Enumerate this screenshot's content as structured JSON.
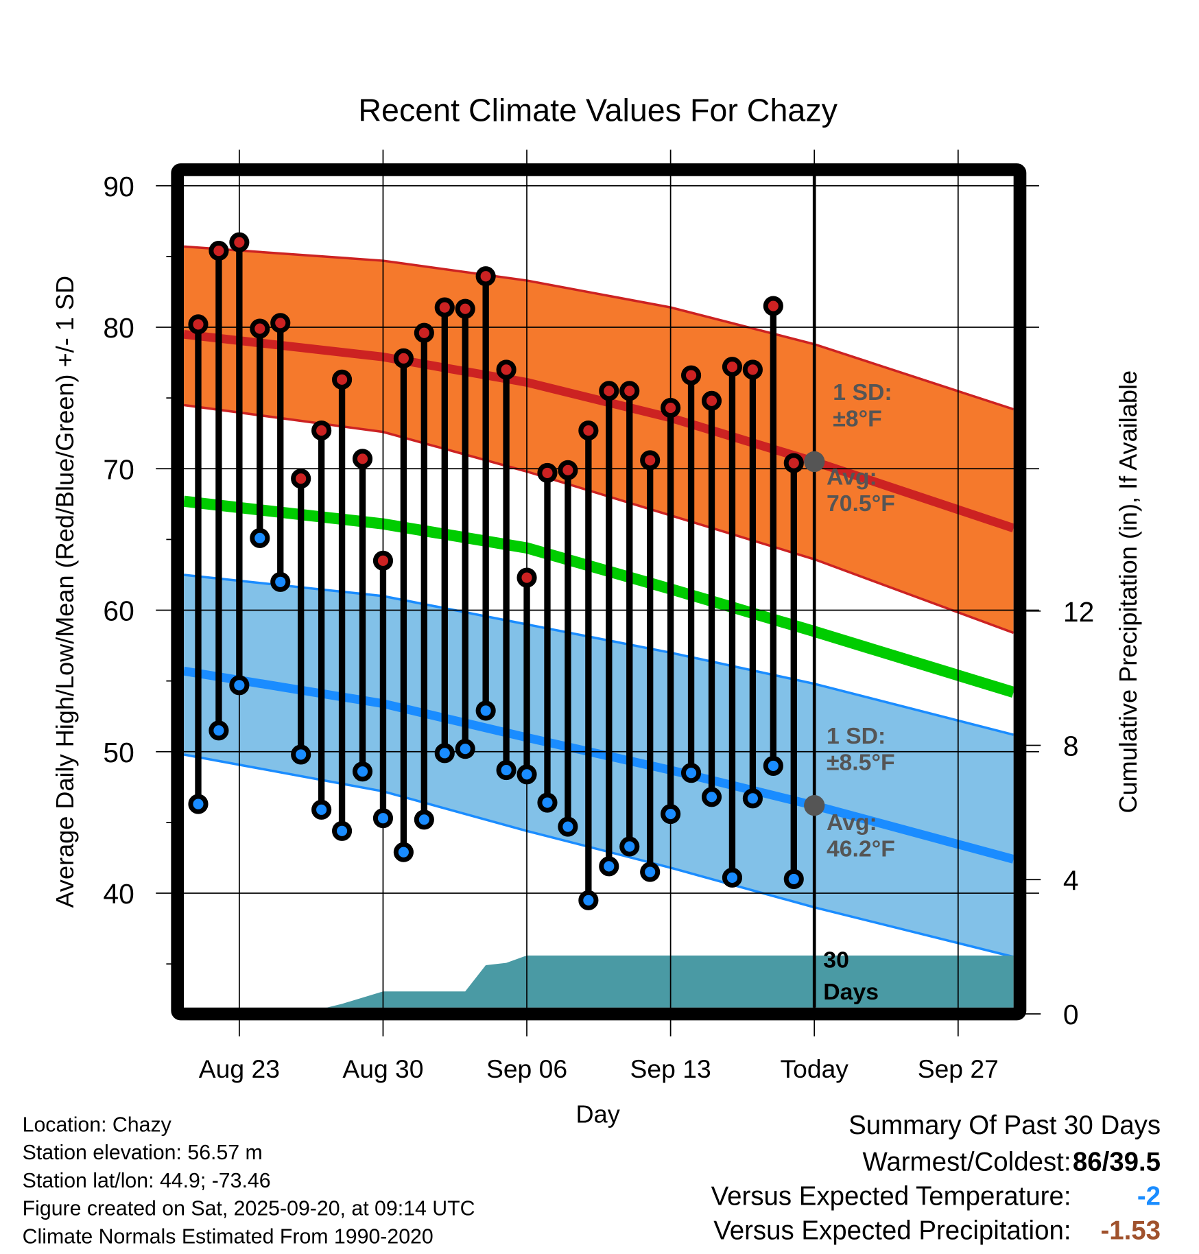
{
  "chart_data": {
    "type": "line",
    "title": "Recent Climate Values For Chazy",
    "xlabel": "Day",
    "ylabel": "Average Daily High/Low/Mean (Red/Blue/Green) +/- 1 SD",
    "y2label": "Cumulative Precipitation (in), If Available",
    "x_reference": "Aug 23 = day 0",
    "xlim": [
      -2.7,
      37.7
    ],
    "ylim": [
      31.5,
      91
    ],
    "y2lim": [
      0,
      14.2
    ],
    "xticks": [
      {
        "day": 0,
        "label": "Aug 23"
      },
      {
        "day": 7,
        "label": "Aug 30"
      },
      {
        "day": 14,
        "label": "Sep 06"
      },
      {
        "day": 21,
        "label": "Sep 13"
      },
      {
        "day": 28,
        "label": "Today"
      },
      {
        "day": 35,
        "label": "Sep 27"
      }
    ],
    "yticks": [
      40,
      50,
      60,
      70,
      80,
      90
    ],
    "y2ticks": [
      0,
      4,
      8,
      12
    ],
    "grid": true,
    "today_day": 28,
    "daily": {
      "days": [
        -2,
        -1,
        0,
        1,
        2,
        3,
        4,
        5,
        6,
        7,
        8,
        9,
        10,
        11,
        12,
        13,
        14,
        15,
        16,
        17,
        18,
        19,
        20,
        21,
        22,
        23,
        24,
        25,
        26,
        27
      ],
      "high": [
        80.2,
        85.4,
        86,
        79.9,
        80.3,
        69.3,
        72.7,
        76.3,
        70.7,
        63.5,
        77.8,
        79.6,
        81.4,
        81.3,
        83.6,
        77,
        62.3,
        69.7,
        69.9,
        72.7,
        75.5,
        75.5,
        70.6,
        74.3,
        76.6,
        74.8,
        77.2,
        77,
        81.5,
        70.4
      ],
      "low": [
        46.3,
        51.5,
        54.7,
        65.1,
        62,
        49.8,
        45.9,
        44.4,
        48.6,
        45.3,
        42.9,
        45.2,
        49.9,
        50.2,
        52.9,
        48.7,
        48.4,
        46.4,
        44.7,
        39.5,
        41.9,
        43.3,
        41.5,
        45.6,
        48.5,
        46.8,
        41.1,
        46.7,
        49,
        41
      ]
    },
    "normals": {
      "days": [
        -2.7,
        7,
        14,
        21,
        28,
        37.7
      ],
      "high_upper": [
        85.7,
        84.7,
        83.3,
        81.4,
        78.8,
        74.2
      ],
      "high_avg": [
        79.5,
        77.9,
        76.1,
        73.6,
        70.5,
        65.8
      ],
      "high_lower": [
        74.5,
        72.6,
        69.8,
        66.7,
        63.6,
        58.4
      ],
      "mean": [
        67.7,
        66.1,
        64.4,
        61.5,
        58.5,
        54.2
      ],
      "low_upper": [
        62.5,
        61,
        59,
        57,
        54.8,
        51.2
      ],
      "low_avg": [
        55.7,
        53.4,
        51,
        48.7,
        46.2,
        42.4
      ],
      "low_lower": [
        49.8,
        47.2,
        44.4,
        41.8,
        39,
        35.5
      ]
    },
    "precip": {
      "days": [
        -2.7,
        3,
        5,
        7,
        11,
        12,
        13,
        14,
        37.7
      ],
      "cumulative_in": [
        0,
        0,
        0.3,
        0.67,
        0.67,
        1.45,
        1.52,
        1.74,
        1.74
      ]
    },
    "annotations": {
      "high_sd": [
        "1 SD:",
        "±8°F"
      ],
      "high_avg": [
        "Avg:",
        "70.5°F"
      ],
      "low_sd": [
        "1 SD:",
        "±8.5°F"
      ],
      "low_avg": [
        "Avg:",
        "46.2°F"
      ],
      "period": [
        "30",
        "Days"
      ],
      "high_avg_value": 70.5,
      "low_avg_value": 46.2
    },
    "colors": {
      "high_band": "#f5792c",
      "high_line": "#cc2222",
      "mean": "#00cc00",
      "low_band": "#82c1e8",
      "low_line": "#1a8cff",
      "precip": "#4a9aa4",
      "high_dot": "#cc2222",
      "low_dot": "#1a8cff"
    }
  },
  "footer": {
    "notes": [
      "Location: Chazy",
      "Station elevation: 56.57 m",
      "Station lat/lon: 44.9; -73.46",
      "Figure created on Sat, 2025-09-20, at 09:14 UTC",
      "Climate Normals Estimated From 1990-2020"
    ],
    "summary_title": "Summary Of Past 30 Days",
    "summary": [
      {
        "label": "Warmest/Coldest:",
        "value": "86/39.5",
        "color": "#000000"
      },
      {
        "label": "Versus Expected Temperature:",
        "value": "-2",
        "color": "#1a8cff"
      },
      {
        "label": "Versus Expected Precipitation:",
        "value": "-1.53",
        "color": "#a0522d"
      }
    ]
  }
}
